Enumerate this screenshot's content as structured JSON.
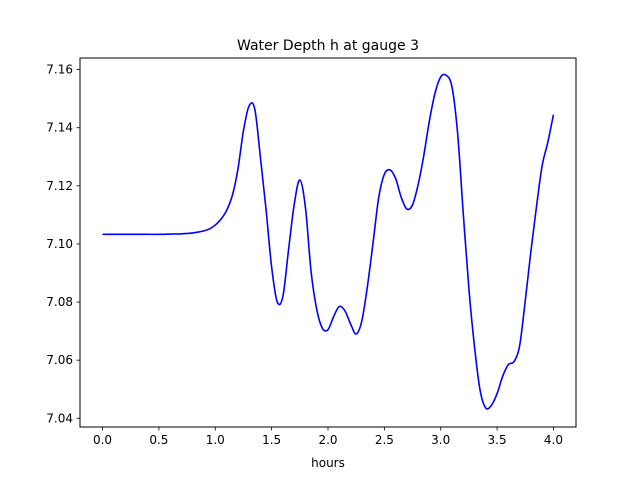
{
  "chart_data": {
    "type": "line",
    "title": "Water Depth h at gauge 3",
    "xlabel": "hours",
    "ylabel": "",
    "xlim": [
      -0.2,
      4.2
    ],
    "ylim": [
      7.037,
      7.164
    ],
    "xticks": [
      0.0,
      0.5,
      1.0,
      1.5,
      2.0,
      2.5,
      3.0,
      3.5,
      4.0
    ],
    "xtick_labels": [
      "0.0",
      "0.5",
      "1.0",
      "1.5",
      "2.0",
      "2.5",
      "3.0",
      "3.5",
      "4.0"
    ],
    "yticks": [
      7.04,
      7.06,
      7.08,
      7.1,
      7.12,
      7.14,
      7.16
    ],
    "ytick_labels": [
      "7.04",
      "7.06",
      "7.08",
      "7.10",
      "7.12",
      "7.14",
      "7.16"
    ],
    "grid": false,
    "series": [
      {
        "color": "#0000ff",
        "x": [
          0.0,
          0.1,
          0.2,
          0.3,
          0.4,
          0.5,
          0.6,
          0.7,
          0.8,
          0.9,
          0.95,
          1.0,
          1.05,
          1.1,
          1.15,
          1.2,
          1.25,
          1.3,
          1.35,
          1.4,
          1.45,
          1.5,
          1.55,
          1.6,
          1.65,
          1.7,
          1.75,
          1.8,
          1.85,
          1.9,
          1.95,
          2.0,
          2.05,
          2.1,
          2.15,
          2.2,
          2.25,
          2.3,
          2.35,
          2.4,
          2.45,
          2.5,
          2.55,
          2.6,
          2.65,
          2.7,
          2.75,
          2.8,
          2.85,
          2.9,
          2.95,
          3.0,
          3.05,
          3.1,
          3.15,
          3.2,
          3.25,
          3.3,
          3.35,
          3.4,
          3.45,
          3.5,
          3.55,
          3.6,
          3.65,
          3.7,
          3.75,
          3.8,
          3.85,
          3.9,
          3.95,
          4.0
        ],
        "values": [
          7.1033,
          7.1033,
          7.1033,
          7.1033,
          7.1033,
          7.1033,
          7.1034,
          7.1035,
          7.1038,
          7.1045,
          7.1052,
          7.1065,
          7.1085,
          7.1115,
          7.1165,
          7.1255,
          7.139,
          7.1475,
          7.1465,
          7.13,
          7.112,
          7.092,
          7.08,
          7.082,
          7.098,
          7.1135,
          7.122,
          7.1125,
          7.0905,
          7.0775,
          7.071,
          7.0705,
          7.075,
          7.0785,
          7.077,
          7.0725,
          7.069,
          7.0735,
          7.0855,
          7.1005,
          7.116,
          7.124,
          7.1255,
          7.1225,
          7.116,
          7.112,
          7.1135,
          7.1205,
          7.1305,
          7.1425,
          7.152,
          7.1575,
          7.158,
          7.154,
          7.138,
          7.1105,
          7.0845,
          7.0645,
          7.0495,
          7.0435,
          7.0445,
          7.0485,
          7.0545,
          7.0585,
          7.0595,
          7.065,
          7.0805,
          7.0975,
          7.113,
          7.127,
          7.135,
          7.1445
        ]
      }
    ]
  }
}
